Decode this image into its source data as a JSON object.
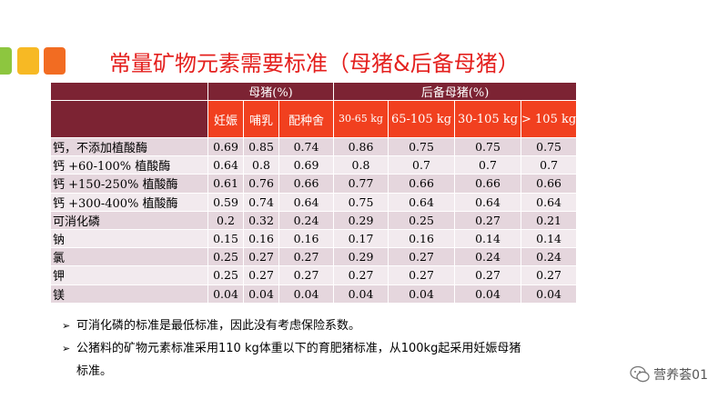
{
  "title": "常量矿物元素需要标准（母猪&后备母猪）",
  "group_headers": {
    "sow": "母猪(%)",
    "gilt": "后备母猪(%)"
  },
  "columns": [
    "妊娠",
    "哺乳",
    "配种舍",
    "30-65 kg",
    "65-105 kg",
    "30-105 kg",
    "> 105 kg"
  ],
  "rows": [
    {
      "label": "钙，不添加植酸酶",
      "values": [
        "0.69",
        "0.85",
        "0.74",
        "0.86",
        "0.75",
        "0.75",
        "0.75"
      ]
    },
    {
      "label": "钙 +60-100% 植酸酶",
      "values": [
        "0.64",
        "0.8",
        "0.69",
        "0.8",
        "0.7",
        "0.7",
        "0.7"
      ]
    },
    {
      "label": "钙 +150-250% 植酸酶",
      "values": [
        "0.61",
        "0.76",
        "0.66",
        "0.77",
        "0.66",
        "0.66",
        "0.66"
      ]
    },
    {
      "label": "钙 +300-400% 植酸酶",
      "values": [
        "0.59",
        "0.74",
        "0.64",
        "0.75",
        "0.64",
        "0.64",
        "0.64"
      ]
    },
    {
      "label": "可消化磷",
      "values": [
        "0.2",
        "0.32",
        "0.24",
        "0.29",
        "0.25",
        "0.27",
        "0.21"
      ]
    },
    {
      "label": "钠",
      "values": [
        "0.15",
        "0.16",
        "0.16",
        "0.17",
        "0.16",
        "0.14",
        "0.14"
      ]
    },
    {
      "label": "氯",
      "values": [
        "0.25",
        "0.27",
        "0.27",
        "0.29",
        "0.27",
        "0.24",
        "0.24"
      ]
    },
    {
      "label": "钾",
      "values": [
        "0.25",
        "0.27",
        "0.27",
        "0.27",
        "0.27",
        "0.27",
        "0.27"
      ]
    },
    {
      "label": "镁",
      "values": [
        "0.04",
        "0.04",
        "0.04",
        "0.04",
        "0.04",
        "0.04",
        "0.04"
      ]
    }
  ],
  "notes": [
    "可消化磷的标准是最低标准，因此没有考虑保险系数。",
    "公猪料的矿物元素标准采用110 kg体重以下的育肥猪标准，从100kg起采用妊娠母猪"
  ],
  "note_continuation": "标准。",
  "watermark": "营养荟01",
  "colors": {
    "title": "#e4201e",
    "header_dark": "#7c2333",
    "header_orange": "#f1401f",
    "row_odd": "#e5d6dd",
    "row_even": "#f2eaee"
  }
}
